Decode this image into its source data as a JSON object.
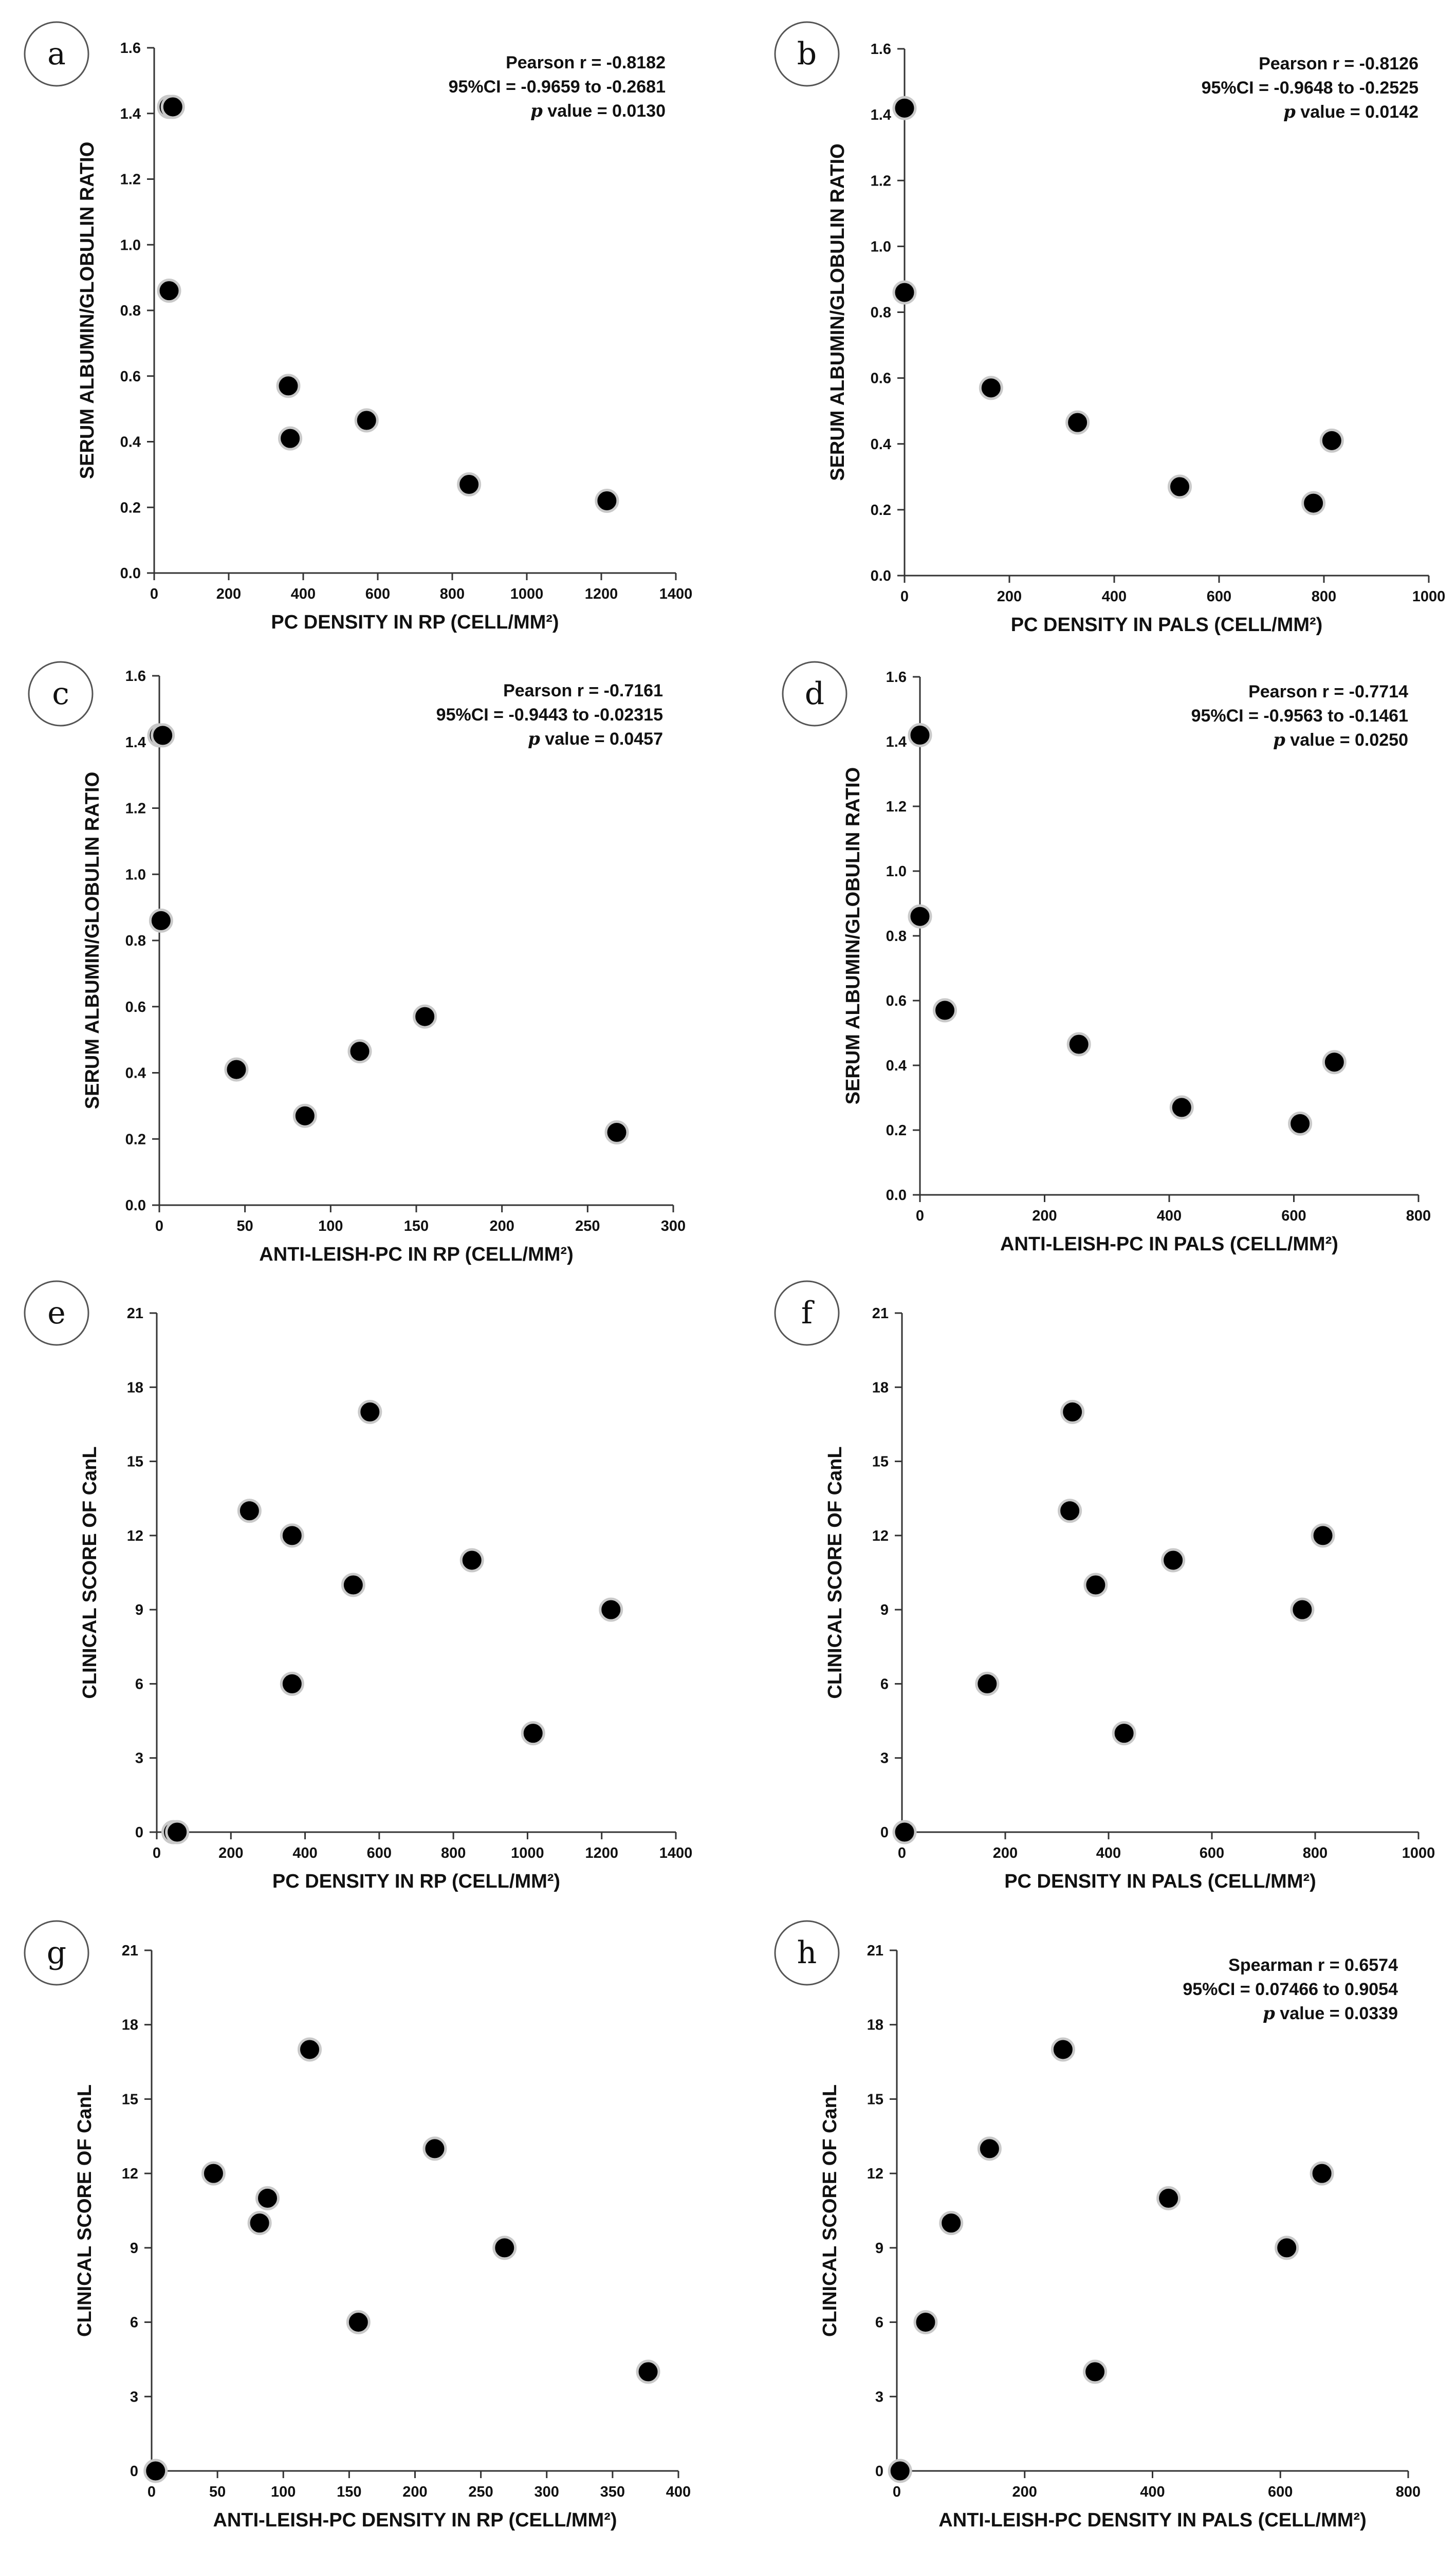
{
  "chart_data": [
    {
      "panel": "a",
      "type": "scatter",
      "xlabel": "PC DENSITY IN RP (CELL/MM²)",
      "ylabel": "SERUM ALBUMIN/GLOBULIN RATIO",
      "xlim": [
        0,
        1400
      ],
      "ylim": [
        0,
        1.6
      ],
      "xticks": [
        "0",
        "200",
        "400",
        "600",
        "800",
        "1000",
        "1200",
        "1400"
      ],
      "yticks": [
        "0.0",
        "0.2",
        "0.4",
        "0.6",
        "0.8",
        "1.0",
        "1.2",
        "1.4",
        "1.6"
      ],
      "x": [
        40,
        50,
        40,
        360,
        365,
        570,
        845,
        1215
      ],
      "y": [
        1.42,
        1.42,
        0.86,
        0.57,
        0.41,
        0.465,
        0.27,
        0.22
      ],
      "stats": [
        {
          "label": "Pearson r = -0.8182"
        },
        {
          "label": "95%CI = -0.9659 to -0.2681"
        },
        {
          "italic": "p",
          "rest": " value = 0.0130"
        }
      ]
    },
    {
      "panel": "b",
      "type": "scatter",
      "xlabel": "PC DENSITY IN PALS (CELL/MM²)",
      "ylabel": "SERUM ALBUMIN/GLOBULIN RATIO",
      "xlim": [
        0,
        1000
      ],
      "ylim": [
        0,
        1.6
      ],
      "xticks": [
        "0",
        "200",
        "400",
        "600",
        "800",
        "1000"
      ],
      "yticks": [
        "0.0",
        "0.2",
        "0.4",
        "0.6",
        "0.8",
        "1.0",
        "1.2",
        "1.4",
        "1.6"
      ],
      "x": [
        0,
        0,
        165,
        330,
        525,
        780,
        815
      ],
      "y": [
        1.42,
        0.86,
        0.57,
        0.465,
        0.27,
        0.22,
        0.41
      ],
      "stats": [
        {
          "label": "Pearson r = -0.8126"
        },
        {
          "label": "95%CI = -0.9648 to -0.2525"
        },
        {
          "italic": "p",
          "rest": " value = 0.0142"
        }
      ]
    },
    {
      "panel": "c",
      "type": "scatter",
      "xlabel": "ANTI-LEISH-PC IN RP (CELL/MM²)",
      "ylabel": "SERUM ALBUMIN/GLOBULIN RATIO",
      "xlim": [
        0,
        300
      ],
      "ylim": [
        0,
        1.6
      ],
      "xticks": [
        "0",
        "50",
        "100",
        "150",
        "200",
        "250",
        "300"
      ],
      "yticks": [
        "0.0",
        "0.2",
        "0.4",
        "0.6",
        "0.8",
        "1.0",
        "1.2",
        "1.4",
        "1.6"
      ],
      "x": [
        0,
        2,
        1,
        45,
        85,
        117,
        155,
        267
      ],
      "y": [
        1.42,
        1.42,
        0.86,
        0.41,
        0.27,
        0.465,
        0.57,
        0.22
      ],
      "stats": [
        {
          "label": "Pearson r = -0.7161"
        },
        {
          "label": "95%CI = -0.9443 to -0.02315"
        },
        {
          "italic": "p",
          "rest": " value = 0.0457"
        }
      ]
    },
    {
      "panel": "d",
      "type": "scatter",
      "xlabel": "ANTI-LEISH-PC IN PALS (CELL/MM²)",
      "ylabel": "SERUM ALBUMIN/GLOBULIN RATIO",
      "xlim": [
        0,
        800
      ],
      "ylim": [
        0,
        1.6
      ],
      "xticks": [
        "0",
        "200",
        "400",
        "600",
        "800"
      ],
      "yticks": [
        "0.0",
        "0.2",
        "0.4",
        "0.6",
        "0.8",
        "1.0",
        "1.2",
        "1.4",
        "1.6"
      ],
      "x": [
        0,
        0,
        40,
        255,
        420,
        610,
        665
      ],
      "y": [
        1.42,
        0.86,
        0.57,
        0.465,
        0.27,
        0.22,
        0.41
      ],
      "stats": [
        {
          "label": "Pearson r = -0.7714"
        },
        {
          "label": "95%CI = -0.9563 to -0.1461"
        },
        {
          "italic": "p",
          "rest": " value = 0.0250"
        }
      ]
    },
    {
      "panel": "e",
      "type": "scatter",
      "xlabel": "PC DENSITY IN RP (CELL/MM²)",
      "ylabel": "CLINICAL SCORE OF CanL",
      "xlim": [
        0,
        1400
      ],
      "ylim": [
        0,
        21
      ],
      "xticks": [
        "0",
        "200",
        "400",
        "600",
        "800",
        "1000",
        "1200",
        "1400"
      ],
      "yticks": [
        "0",
        "3",
        "6",
        "9",
        "12",
        "15",
        "18",
        "21"
      ],
      "x": [
        45,
        55,
        250,
        365,
        365,
        530,
        575,
        850,
        1015,
        1225
      ],
      "y": [
        0,
        0,
        13,
        12,
        6,
        10,
        17,
        11,
        4,
        9
      ],
      "stats": []
    },
    {
      "panel": "f",
      "type": "scatter",
      "xlabel": "PC DENSITY IN PALS (CELL/MM²)",
      "ylabel": "CLINICAL SCORE OF CanL",
      "xlim": [
        0,
        1000
      ],
      "ylim": [
        0,
        21
      ],
      "xticks": [
        "0",
        "200",
        "400",
        "600",
        "800",
        "1000"
      ],
      "yticks": [
        "0",
        "3",
        "6",
        "9",
        "12",
        "15",
        "18",
        "21"
      ],
      "x": [
        5,
        165,
        325,
        330,
        375,
        430,
        525,
        775,
        815
      ],
      "y": [
        0,
        6,
        13,
        17,
        10,
        4,
        11,
        9,
        12
      ],
      "stats": []
    },
    {
      "panel": "g",
      "type": "scatter",
      "xlabel": "ANTI-LEISH-PC DENSITY IN RP (CELL/MM²)",
      "ylabel": "CLINICAL SCORE OF CanL",
      "xlim": [
        0,
        400
      ],
      "ylim": [
        0,
        21
      ],
      "xticks": [
        "0",
        "50",
        "100",
        "150",
        "200",
        "250",
        "300",
        "350",
        "400"
      ],
      "yticks": [
        "0",
        "3",
        "6",
        "9",
        "12",
        "15",
        "18",
        "21"
      ],
      "x": [
        3,
        47,
        82,
        88,
        120,
        157,
        215,
        268,
        377
      ],
      "y": [
        0,
        12,
        10,
        11,
        17,
        6,
        13,
        9,
        4
      ],
      "stats": []
    },
    {
      "panel": "h",
      "type": "scatter",
      "xlabel": "ANTI-LEISH-PC DENSITY IN PALS (CELL/MM²)",
      "ylabel": "CLINICAL SCORE OF CanL",
      "xlim": [
        0,
        800
      ],
      "ylim": [
        0,
        21
      ],
      "xticks": [
        "0",
        "200",
        "400",
        "600",
        "800"
      ],
      "yticks": [
        "0",
        "3",
        "6",
        "9",
        "12",
        "15",
        "18",
        "21"
      ],
      "x": [
        5,
        45,
        85,
        145,
        260,
        310,
        425,
        610,
        665
      ],
      "y": [
        0,
        6,
        10,
        13,
        17,
        4,
        11,
        9,
        12
      ],
      "stats": [
        {
          "label": "Spearman r = 0.6574"
        },
        {
          "label": "95%CI = 0.07466 to 0.9054"
        },
        {
          "italic": "p",
          "rest": " value = 0.0339"
        }
      ]
    }
  ]
}
